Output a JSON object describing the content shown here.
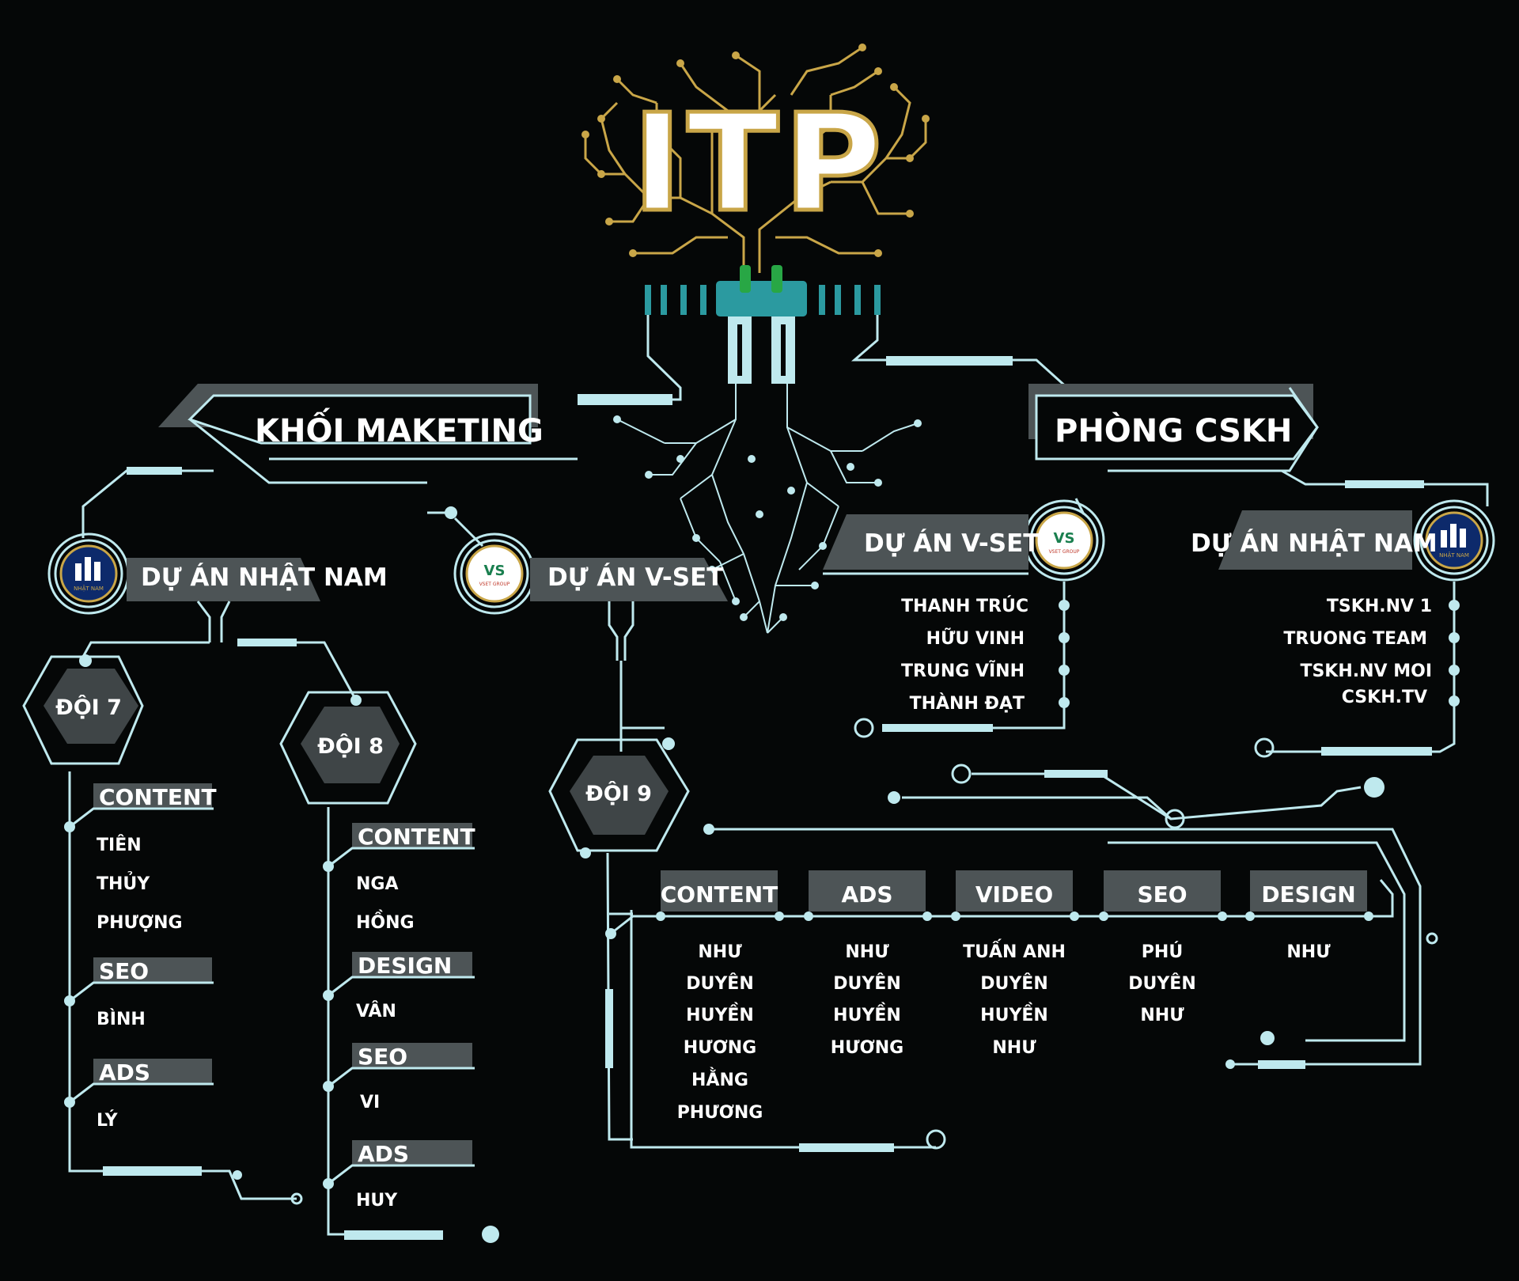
{
  "logo": {
    "text": "ITP"
  },
  "left_block": {
    "title": "KHỐI MAKETING",
    "project_a": "DỰ ÁN NHẬT NAM",
    "project_b": "DỰ ÁN V-SET",
    "team7": {
      "label": "ĐỘI 7",
      "groups": [
        {
          "label": "CONTENT",
          "members": [
            "TIÊN",
            "THỦY",
            "PHƯỢNG"
          ]
        },
        {
          "label": "SEO",
          "members": [
            "BÌNH"
          ]
        },
        {
          "label": "ADS",
          "members": [
            "LÝ"
          ]
        }
      ]
    },
    "team8": {
      "label": "ĐỘI 8",
      "groups": [
        {
          "label": "CONTENT",
          "members": [
            "NGA",
            "HỒNG"
          ]
        },
        {
          "label": "DESIGN",
          "members": [
            "VÂN"
          ]
        },
        {
          "label": "SEO",
          "members": [
            "VI"
          ]
        },
        {
          "label": "ADS",
          "members": [
            "HUY"
          ]
        }
      ]
    },
    "team9": {
      "label": "ĐỘI 9",
      "columns": [
        {
          "label": "CONTENT",
          "members": [
            "NHƯ",
            "DUYÊN",
            "HUYỀN",
            "HƯƠNG",
            "HẰNG",
            "PHƯƠNG"
          ]
        },
        {
          "label": "ADS",
          "members": [
            "NHƯ",
            "DUYÊN",
            "HUYỀN",
            "HƯƠNG"
          ]
        },
        {
          "label": "VIDEO",
          "members": [
            "TUẤN ANH",
            "DUYÊN",
            "HUYỀN",
            "NHƯ"
          ]
        },
        {
          "label": "SEO",
          "members": [
            "PHÚ",
            "DUYÊN",
            "NHƯ"
          ]
        },
        {
          "label": "DESIGN",
          "members": [
            "NHƯ"
          ]
        }
      ]
    }
  },
  "right_block": {
    "title": "PHÒNG CSKH",
    "vset": {
      "label": "DỰ ÁN V-SET",
      "members": [
        "THANH TRÚC",
        "HỮU VINH",
        "TRUNG VĨNH",
        "THÀNH ĐẠT"
      ]
    },
    "nhatnam": {
      "label": "DỰ ÁN NHẬT NAM",
      "members": [
        "TSKH.NV 1",
        "TRUONG TEAM",
        "TSKH.NV MOI",
        "CSKH.TV"
      ]
    }
  },
  "logos": {
    "nhatnam_text": "NHẬT NAM",
    "vset_mark": "VS",
    "vset_text": "VSET GROUP"
  },
  "colors": {
    "background": "#050707",
    "wire": "#bfe9ee",
    "panel": "#4d5456",
    "gold": "#c9a648",
    "teal": "#2b9aa0"
  }
}
